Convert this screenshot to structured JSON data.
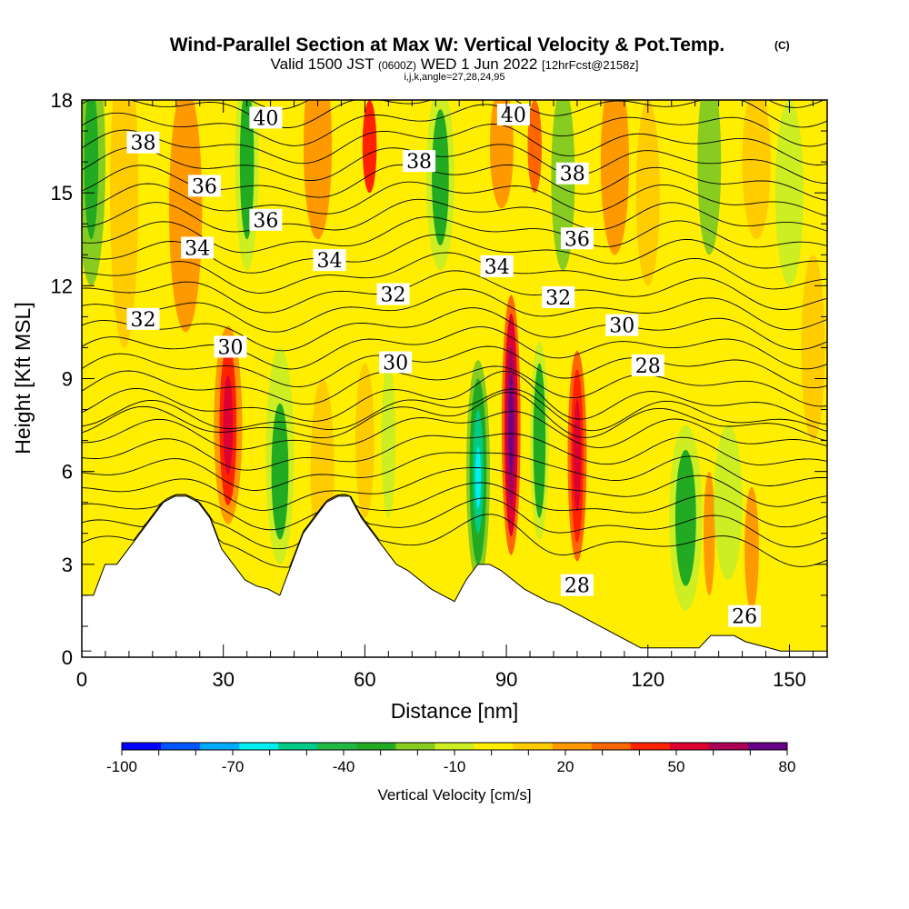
{
  "title": {
    "main": "Wind-Parallel Section at Max W: Vertical Velocity & Pot.Temp.",
    "copyright": "(C)",
    "valid_prefix": "Valid 1500 JST",
    "utc": "(0600Z)",
    "valid_date": "WED 1 Jun 2022",
    "forecast": "[12hrFcst@2158z]",
    "indices": "i,j,k,angle=27,28,24,95"
  },
  "chart_data": {
    "type": "heatmap",
    "xlabel": "Distance [nm]",
    "ylabel": "Height [Kft MSL]",
    "xlim": [
      0,
      158
    ],
    "ylim": [
      0,
      18
    ],
    "x_ticks": [
      0,
      30,
      60,
      90,
      120,
      150
    ],
    "y_ticks": [
      0,
      3,
      6,
      9,
      12,
      15,
      18
    ],
    "fill_variable": "Vertical Velocity [cm/s]",
    "colorbar": {
      "label": "Vertical Velocity [cm/s]",
      "range": [
        -100,
        80
      ],
      "tick_labels": [
        "-100",
        "-70",
        "-40",
        "-10",
        "20",
        "50",
        "80"
      ],
      "colors": [
        "#0000ff",
        "#0055ff",
        "#00aaff",
        "#00eeee",
        "#00cc88",
        "#22b844",
        "#22aa22",
        "#88cc22",
        "#ccee22",
        "#ffee00",
        "#ffcc00",
        "#ff9900",
        "#ff6600",
        "#ff2200",
        "#dd0033",
        "#aa0055",
        "#660088"
      ]
    },
    "contour_variable": "potential temperature",
    "contour_labels": [
      {
        "text": "40",
        "x": 39,
        "y": 17.4
      },
      {
        "text": "40",
        "x": 91.5,
        "y": 17.5
      },
      {
        "text": "38",
        "x": 13,
        "y": 16.6
      },
      {
        "text": "38",
        "x": 71.5,
        "y": 16.0
      },
      {
        "text": "38",
        "x": 104,
        "y": 15.6
      },
      {
        "text": "36",
        "x": 26,
        "y": 15.2
      },
      {
        "text": "36",
        "x": 39,
        "y": 14.1
      },
      {
        "text": "36",
        "x": 105,
        "y": 13.5
      },
      {
        "text": "34",
        "x": 24.5,
        "y": 13.2
      },
      {
        "text": "34",
        "x": 52.5,
        "y": 12.8
      },
      {
        "text": "34",
        "x": 88,
        "y": 12.6
      },
      {
        "text": "32",
        "x": 13,
        "y": 10.9
      },
      {
        "text": "32",
        "x": 66,
        "y": 11.7
      },
      {
        "text": "32",
        "x": 101,
        "y": 11.6
      },
      {
        "text": "30",
        "x": 31.5,
        "y": 10.0
      },
      {
        "text": "30",
        "x": 66.5,
        "y": 9.5
      },
      {
        "text": "30",
        "x": 114.5,
        "y": 10.7
      },
      {
        "text": "28",
        "x": 120,
        "y": 9.4
      },
      {
        "text": "28",
        "x": 105,
        "y": 2.3
      },
      {
        "text": "26",
        "x": 140.5,
        "y": 1.3
      }
    ],
    "terrain_height": [
      2,
      2,
      3,
      3,
      3.5,
      4,
      4.5,
      5,
      5.2,
      5.2,
      5,
      4.5,
      3.5,
      3,
      2.5,
      2.3,
      2.2,
      2,
      3,
      4,
      4.5,
      5,
      5.2,
      5.2,
      4.5,
      4,
      3.5,
      3,
      2.8,
      2.5,
      2.2,
      2,
      1.8,
      2.5,
      3,
      3,
      2.8,
      2.5,
      2.2,
      2,
      1.8,
      1.7,
      1.5,
      1.3,
      1.1,
      0.9,
      0.7,
      0.5,
      0.3,
      0.3,
      0.3,
      0.3,
      0.3,
      0.3,
      0.7,
      0.7,
      0.7,
      0.5,
      0.4,
      0.3,
      0.2,
      0.2,
      0.2,
      0.2,
      0.2
    ]
  }
}
